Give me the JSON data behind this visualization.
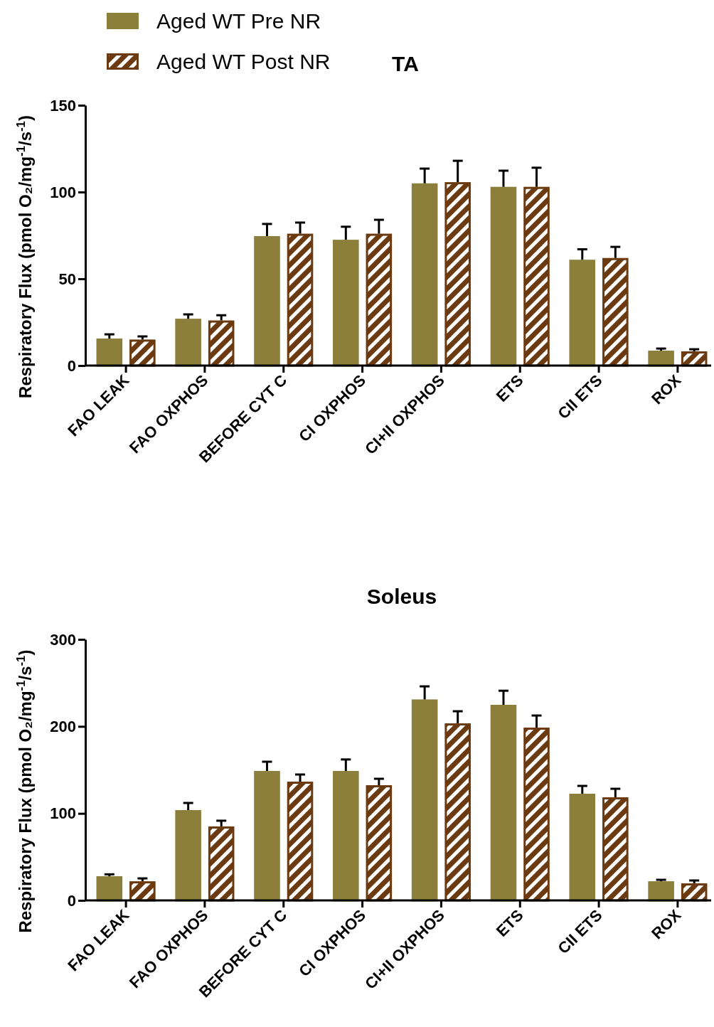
{
  "chart_data": [
    {
      "type": "bar",
      "title": "TA",
      "ylabel": "Respiratory Flux (pmol O₂/mg$^{-1}$/s$^{-1}$)",
      "categories": [
        "FAO LEAK",
        "FAO OXPHOS",
        "BEFORE CYT C",
        "CI OXPHOS",
        "CI+II OXPHOS",
        "ETS",
        "CII ETS",
        "ROX"
      ],
      "series": [
        {
          "name": "Aged WT Pre NR",
          "color": "#8c7e3b",
          "values": [
            15.6,
            27,
            74.6,
            72.5,
            105,
            103,
            61,
            8.6
          ],
          "errors": [
            [
              15.6,
              18
            ],
            [
              27,
              29.5
            ],
            [
              74.6,
              81.6
            ],
            [
              72.5,
              80
            ],
            [
              105,
              113.5
            ],
            [
              103,
              112.3
            ],
            [
              61,
              67
            ],
            [
              8.6,
              9.8
            ]
          ]
        },
        {
          "name": "Aged WT Post NR",
          "color": "#6b3a10",
          "values": [
            15,
            26,
            76,
            76,
            105.7,
            103,
            62,
            8.2
          ],
          "errors": [
            [
              15,
              16.8
            ],
            [
              26,
              29
            ],
            [
              76,
              82.4
            ],
            [
              76,
              84
            ],
            [
              105.7,
              118
            ],
            [
              103,
              114
            ],
            [
              62,
              68.4
            ],
            [
              8.2,
              9.4
            ]
          ]
        }
      ],
      "ylim": [
        0,
        150
      ],
      "yticks": [
        0,
        50,
        100,
        150
      ],
      "legend": "top left",
      "grid": false
    },
    {
      "type": "bar",
      "title": "Soleus",
      "ylabel": "Respiratory Flux (pmol O₂/mg$^{-1}$/s$^{-1}$)",
      "categories": [
        "FAO LEAK",
        "FAO OXPHOS",
        "BEFORE CYT C",
        "CI OXPHOS",
        "CI+II OXPHOS",
        "ETS",
        "CII ETS",
        "ROX"
      ],
      "series": [
        {
          "color": "#8c7e3b",
          "values": [
            27.8,
            103.8,
            148.8,
            148.8,
            231,
            224.8,
            122.6,
            22
          ],
          "errors": [
            [
              27.8,
              30
            ],
            [
              103.8,
              112
            ],
            [
              148.8,
              159.4
            ],
            [
              148.8,
              162
            ],
            [
              231,
              246
            ],
            [
              224.8,
              241
            ],
            [
              122.6,
              131.6
            ],
            [
              22,
              23.7
            ]
          ]
        },
        {
          "color": "#6b3a10",
          "values": [
            22,
            85,
            136.5,
            132.4,
            203.5,
            198.6,
            118.5,
            19.6
          ],
          "errors": [
            [
              22,
              25.3
            ],
            [
              85,
              91.6
            ],
            [
              136.5,
              144.7
            ],
            [
              132.4,
              139.8
            ],
            [
              203.5,
              217.4
            ],
            [
              198.6,
              212.5
            ],
            [
              118.5,
              128.3
            ],
            [
              19.6,
              22.9
            ]
          ]
        }
      ],
      "ylim": [
        0,
        300
      ],
      "yticks": [
        0,
        100,
        200,
        300
      ],
      "grid": false
    }
  ]
}
